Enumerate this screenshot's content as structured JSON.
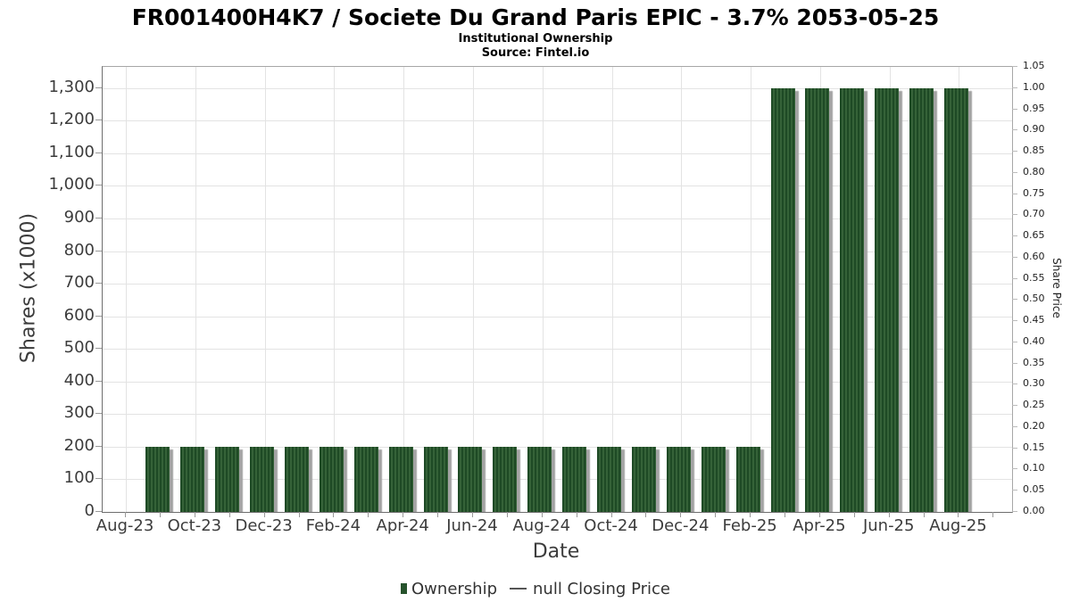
{
  "chart_data": {
    "type": "bar",
    "title": "FR001400H4K7 / Societe Du Grand Paris EPIC - 3.7% 2053-05-25",
    "subtitle": "Institutional Ownership",
    "source": "Source: Fintel.io",
    "xlabel": "Date",
    "ylabel": "Shares (x1000)",
    "y2label": "Share Price",
    "series": [
      {
        "name": "Ownership",
        "type": "bar",
        "axis": "left",
        "categories": [
          "Sep-23",
          "Oct-23",
          "Nov-23",
          "Dec-23",
          "Jan-24",
          "Feb-24",
          "Mar-24",
          "Apr-24",
          "May-24",
          "Jun-24",
          "Jul-24",
          "Aug-24",
          "Sep-24",
          "Oct-24",
          "Nov-24",
          "Dec-24",
          "Jan-25",
          "Feb-25",
          "Mar-25",
          "Apr-25",
          "May-25",
          "Jun-25",
          "Jul-25",
          "Aug-25"
        ],
        "values": [
          200,
          200,
          200,
          200,
          200,
          200,
          200,
          200,
          200,
          200,
          200,
          200,
          200,
          200,
          200,
          200,
          200,
          200,
          1300,
          1300,
          1300,
          1300,
          1300,
          1300
        ]
      },
      {
        "name": "null Closing Price",
        "type": "line",
        "axis": "right",
        "values": []
      }
    ],
    "x_ticks": [
      "Aug-23",
      "Oct-23",
      "Dec-23",
      "Feb-24",
      "Apr-24",
      "Jun-24",
      "Aug-24",
      "Oct-24",
      "Dec-24",
      "Feb-25",
      "Apr-25",
      "Jun-25",
      "Aug-25"
    ],
    "y_ticks": [
      "0",
      "100",
      "200",
      "300",
      "400",
      "500",
      "600",
      "700",
      "800",
      "900",
      "1,000",
      "1,100",
      "1,200",
      "1,300"
    ],
    "y2_ticks": [
      "0.00",
      "0.05",
      "0.10",
      "0.15",
      "0.20",
      "0.25",
      "0.30",
      "0.35",
      "0.40",
      "0.45",
      "0.50",
      "0.55",
      "0.60",
      "0.65",
      "0.70",
      "0.75",
      "0.80",
      "0.85",
      "0.90",
      "0.95",
      "1.00",
      "1.05"
    ],
    "y_axis": {
      "min": 0,
      "visible_max": 1300,
      "range_top_value": 1365
    },
    "y2_axis": {
      "min": 0.0,
      "max": 1.05
    },
    "grid": true,
    "legend_position": "bottom",
    "legend": [
      {
        "label": "Ownership",
        "marker": "square",
        "color": "#27532d"
      },
      {
        "label": "null Closing Price",
        "marker": "line",
        "color": "#555555"
      }
    ],
    "colors": {
      "bar_stripe_dark": "#1e4a25",
      "bar_stripe_light": "#356238",
      "bar_shadow": "#a3a3a3",
      "grid_line": "#e3e3e3",
      "plot_border": "#a7a7a7",
      "axis_line": "#6e6e6e",
      "tick_text": "#3c3c3c",
      "title_text": "#000000"
    }
  }
}
